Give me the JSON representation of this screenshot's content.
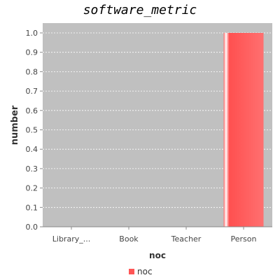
{
  "chart_data": {
    "type": "bar",
    "title": "software_metric",
    "xlabel": "noc",
    "ylabel": "number",
    "categories": [
      "Library_...",
      "Book",
      "Teacher",
      "Person"
    ],
    "series": [
      {
        "name": "noc",
        "values": [
          0,
          0,
          0,
          1.0
        ],
        "color": "#ff5555"
      }
    ],
    "ylim": [
      0,
      1.0
    ],
    "yticks": [
      "0.0",
      "0.1",
      "0.2",
      "0.3",
      "0.4",
      "0.5",
      "0.6",
      "0.7",
      "0.8",
      "0.9",
      "1.0"
    ],
    "grid": true,
    "legend_position": "bottom-center",
    "plot_background": "#c0c0c0"
  }
}
